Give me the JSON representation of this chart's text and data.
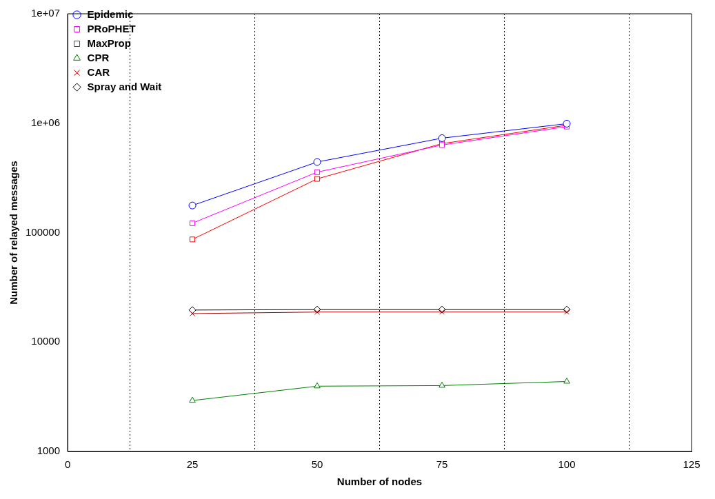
{
  "chart_data": {
    "type": "line",
    "xlabel": "Number of nodes",
    "ylabel": "Number of relayed messages",
    "x": [
      25,
      50,
      75,
      100
    ],
    "xlim": [
      0,
      125
    ],
    "xticks": [
      0,
      25,
      50,
      75,
      100,
      125
    ],
    "ylim": [
      1000,
      10000000
    ],
    "yticks": [
      1000,
      10000,
      100000,
      {
        "value": 1000000,
        "label": "1e+06"
      },
      {
        "value": 10000000,
        "label": "1e+07"
      }
    ],
    "log": "y",
    "legend": "top left",
    "grid": false,
    "ref_lines": [
      {
        "axis": "x",
        "value": 12.5,
        "line_style": "dotted",
        "color": "#000000"
      },
      {
        "axis": "x",
        "value": 37.5,
        "line_style": "dotted",
        "color": "#000000"
      },
      {
        "axis": "x",
        "value": 62.5,
        "line_style": "dotted",
        "color": "#000000"
      },
      {
        "axis": "x",
        "value": 87.5,
        "line_style": "dotted",
        "color": "#000000"
      },
      {
        "axis": "x",
        "value": 112.5,
        "line_style": "dotted",
        "color": "#000000"
      }
    ],
    "series": [
      {
        "name": "Epidemic",
        "color": "#0000ff",
        "marker": "circle",
        "values": [
          177000,
          442000,
          730000,
          990000
        ]
      },
      {
        "name": "PRoPHET",
        "color": "#ff00ff",
        "marker": "square",
        "values": [
          122000,
          357000,
          632000,
          931000
        ]
      },
      {
        "name": "MaxProp",
        "color": "#ff0000",
        "marker": "square",
        "values": [
          86700,
          310000,
          651000,
          958000
        ]
      },
      {
        "name": "CPR",
        "color": "#008000",
        "marker": "triangle",
        "values": [
          2920,
          3950,
          4000,
          4360
        ]
      },
      {
        "name": "CAR",
        "color": "#a00000",
        "marker": "cross",
        "values": [
          18200,
          18800,
          18800,
          18800
        ]
      },
      {
        "name": "Spray and Wait",
        "color": "#000000",
        "marker": "diamond",
        "values": [
          19600,
          19800,
          19800,
          19800
        ]
      }
    ]
  }
}
